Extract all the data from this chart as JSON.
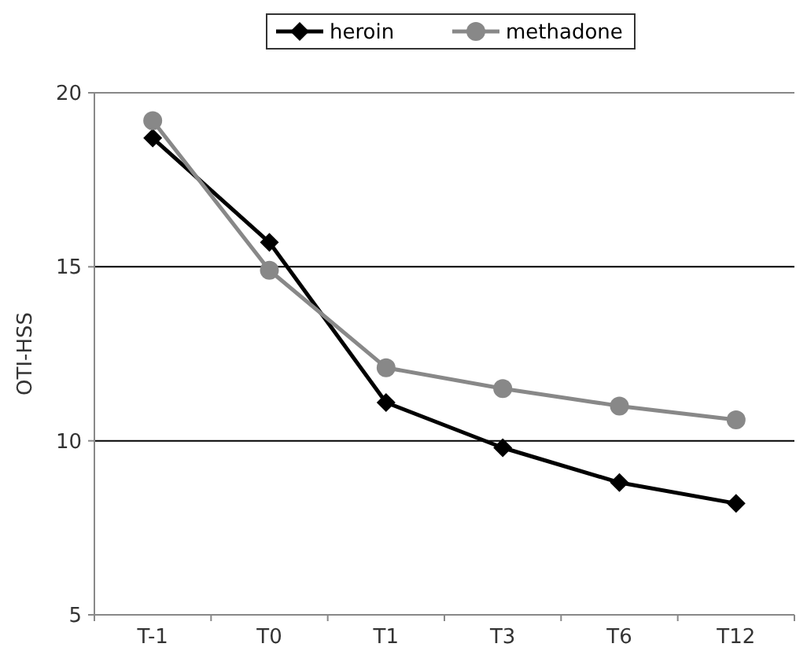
{
  "chart_data": {
    "type": "line",
    "ylabel": "OTI-HSS",
    "categories": [
      "T-1",
      "T0",
      "T1",
      "T3",
      "T6",
      "T12"
    ],
    "series": [
      {
        "name": "heroin",
        "color": "#000000",
        "marker": "diamond",
        "values": [
          18.7,
          15.7,
          11.1,
          9.8,
          8.8,
          8.2
        ]
      },
      {
        "name": "methadone",
        "color": "#888888",
        "marker": "circle",
        "values": [
          19.2,
          14.9,
          12.1,
          11.5,
          11.0,
          10.6
        ]
      }
    ],
    "ylim": [
      5,
      20
    ],
    "yticks": [
      5,
      10,
      15,
      20
    ],
    "grid": "y",
    "legend": "top"
  }
}
